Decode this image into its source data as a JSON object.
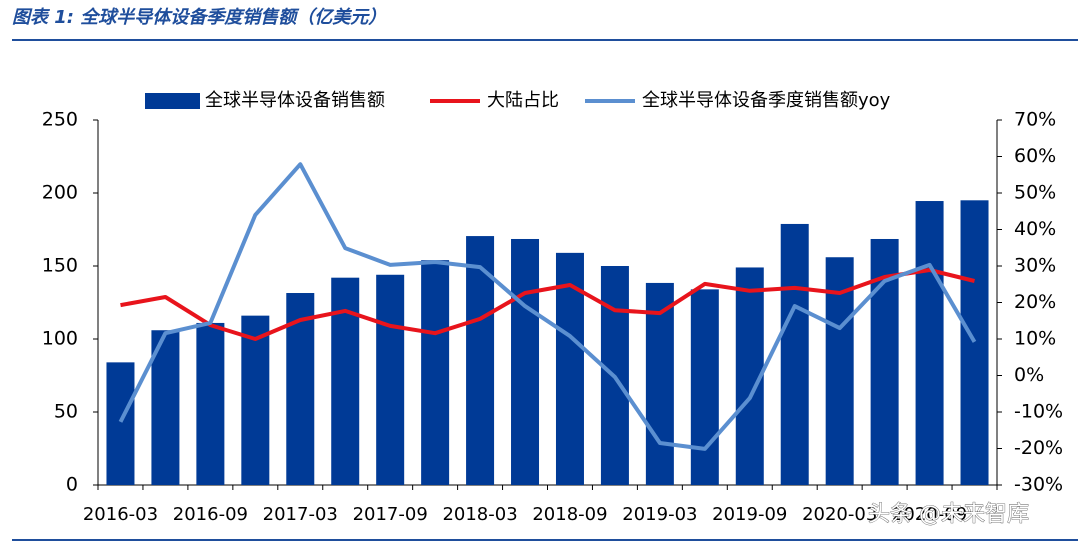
{
  "chart_data": {
    "type": "bar",
    "title": "图表 1:  全球半导体设备季度销售额（亿美元）",
    "annotation": "头条 @未来智库",
    "categories": [
      "2016-03",
      null,
      "2016-09",
      null,
      "2017-03",
      null,
      "2017-09",
      null,
      "2018-03",
      null,
      "2018-09",
      null,
      "2019-03",
      null,
      "2019-09",
      null,
      "2020-03",
      null,
      "2020-09",
      null
    ],
    "series": [
      {
        "name": "全球半导体设备销售额",
        "type": "bar",
        "color": "#003a96",
        "values": [
          84,
          106,
          111,
          116,
          131.5,
          142,
          144,
          154,
          170.5,
          168.5,
          159,
          150,
          138.4,
          134,
          149,
          178.8,
          156,
          168.5,
          194.5,
          195
        ]
      },
      {
        "name": "大陆占比",
        "type": "line",
        "axis": "y2",
        "color": "#e8141c",
        "values": [
          19.3,
          21.5,
          13.8,
          10,
          15.2,
          17.7,
          13.6,
          11.6,
          15.5,
          22.6,
          24.8,
          17.9,
          17.1,
          25.1,
          23.2,
          24,
          22.6,
          27,
          28.9,
          25.9
        ]
      },
      {
        "name": "全球半导体设备季度销售额yoy",
        "type": "line",
        "axis": "y2",
        "color": "#5b8fd0",
        "values": [
          -12.7,
          11.6,
          14.4,
          44,
          57.9,
          34.9,
          30.3,
          31.1,
          29.7,
          19,
          10.8,
          -0.4,
          -18.5,
          -20.1,
          -6.2,
          19,
          13,
          25.9,
          30.3,
          9.2
        ]
      }
    ],
    "ylim": [
      0,
      250
    ],
    "yticks": [
      0,
      50,
      100,
      150,
      200,
      250
    ],
    "y2lim": [
      -30,
      70
    ],
    "y2ticks": [
      {
        "value": -30,
        "label": "-30%"
      },
      {
        "value": -20,
        "label": "-20%"
      },
      {
        "value": -10,
        "label": "-10%"
      },
      {
        "value": 0,
        "label": "0%"
      },
      {
        "value": 10,
        "label": "10%"
      },
      {
        "value": 20,
        "label": "20%"
      },
      {
        "value": 30,
        "label": "30%"
      },
      {
        "value": 40,
        "label": "40%"
      },
      {
        "value": 50,
        "label": "50%"
      },
      {
        "value": 60,
        "label": "60%"
      },
      {
        "value": 70,
        "label": "70%"
      }
    ],
    "grid": false,
    "legend": "top"
  }
}
